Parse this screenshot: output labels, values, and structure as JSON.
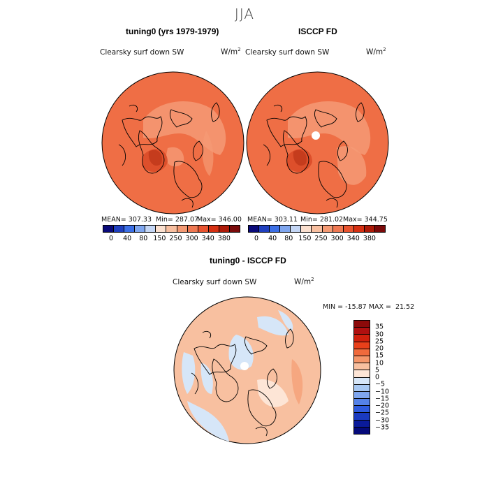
{
  "season": "JJA",
  "panels": [
    {
      "title": "tuning0 (yrs 1979-1979)",
      "variable": "Clearsky surf down SW",
      "units": "W/m",
      "units_sup": "2",
      "mean": "MEAN= 307.33",
      "min": "Min= 287.07",
      "max": "Max= 346.00",
      "base_color": "#ef6e45"
    },
    {
      "title": "ISCCP FD",
      "variable": "Clearsky surf down SW",
      "units": "W/m",
      "units_sup": "2",
      "mean": "MEAN= 303.11",
      "min": "Min= 281.02",
      "max": "Max= 344.75",
      "base_color": "#ef6e45"
    }
  ],
  "diff_panel": {
    "title": "tuning0 - ISCCP FD",
    "variable": "Clearsky surf down SW",
    "units": "W/m",
    "units_sup": "2",
    "minmax": "MIN = -15.87 MAX =  21.52"
  },
  "colorbar_abs": {
    "labels": [
      "0",
      "40",
      "80",
      "150",
      "250",
      "300",
      "340",
      "380"
    ],
    "colors": [
      "#0a0a7a",
      "#1f3fbf",
      "#3c6fe6",
      "#7fa6ef",
      "#c4d6f5",
      "#fbe0cf",
      "#f8bfa0",
      "#f49a74",
      "#ef7852",
      "#e8532f",
      "#d63012",
      "#ad1a08",
      "#7a0a0a"
    ]
  },
  "colorbar_diff": {
    "labels": [
      "35",
      "30",
      "25",
      "20",
      "15",
      "10",
      "5",
      "0",
      "−5",
      "−10",
      "−15",
      "−20",
      "−25",
      "−30",
      "−35"
    ],
    "colors": [
      "#8c0a0a",
      "#b01010",
      "#d0200d",
      "#e8401a",
      "#f06a3c",
      "#f5966a",
      "#f8c0a0",
      "#fde5d6",
      "#d6e6f8",
      "#a8c8f2",
      "#7fa6ef",
      "#5582e8",
      "#2f5bde",
      "#1a3ac0",
      "#0a1a9a",
      "#050a7a"
    ]
  }
}
